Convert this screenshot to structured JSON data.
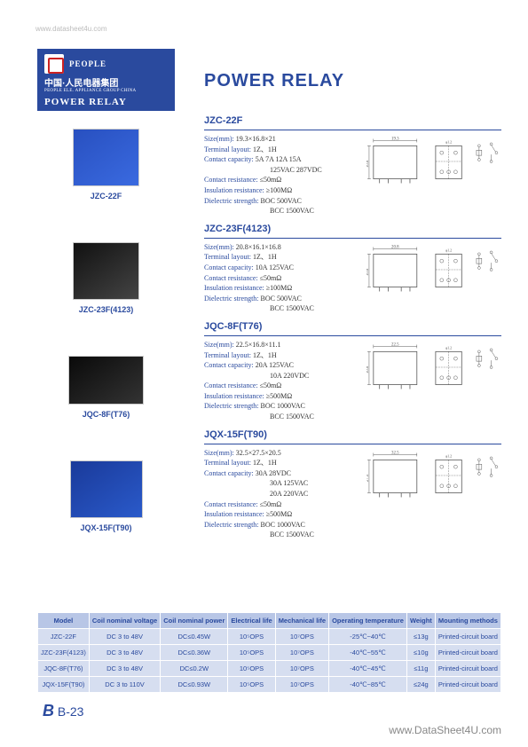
{
  "watermark_top": "www.datasheet4u.com",
  "watermark_bottom": "www.DataSheet4U.com",
  "header": {
    "brand": "PEOPLE",
    "cn": "中国·人民电器集团",
    "en_sub": "PEOPLE ELE. APPLIANCE GROUP CHINA",
    "product": "POWER RELAY"
  },
  "page_title": "POWER RELAY",
  "products": [
    {
      "id": "JZC-22F",
      "img_class": "blue"
    },
    {
      "id": "JZC-23F(4123)",
      "img_class": "black"
    },
    {
      "id": "JQC-8F(T76)",
      "img_class": "black2"
    },
    {
      "id": "JQX-15F(T90)",
      "img_class": "blue2"
    }
  ],
  "blocks": [
    {
      "title": "JZC-22F",
      "specs": [
        {
          "l": "Size(mm):",
          "v": "19.3×16.8×21"
        },
        {
          "l": "Terminal layout:",
          "v": "1Z、1H"
        },
        {
          "l": "Contact capacity:",
          "v": "5A 7A 12A 15A"
        },
        {
          "l": "",
          "v": "125VAC 287VDC",
          "indent": true
        },
        {
          "l": "Contact resistance:",
          "v": "≤50mΩ"
        },
        {
          "l": "Insulation resistance:",
          "v": "≥100MΩ"
        },
        {
          "l": "Dielectric strength:",
          "v": "BOC 500VAC"
        },
        {
          "l": "",
          "v": "BCC 1500VAC",
          "indent": true
        }
      ],
      "dim_w": "19.3",
      "dim_h": "16.8"
    },
    {
      "title": "JZC-23F(4123)",
      "specs": [
        {
          "l": "Size(mm):",
          "v": "20.8×16.1×16.8"
        },
        {
          "l": "Terminal layout:",
          "v": "1Z、1H"
        },
        {
          "l": "Contact capacity:",
          "v": "10A 125VAC"
        },
        {
          "l": "Contact resistance:",
          "v": "≤50mΩ"
        },
        {
          "l": "Insulation resistance:",
          "v": "≥100MΩ"
        },
        {
          "l": "Dielectric strength:",
          "v": "BOC 500VAC"
        },
        {
          "l": "",
          "v": "BCC 1500VAC",
          "indent": true
        }
      ],
      "dim_w": "20.8",
      "dim_h": "16.8"
    },
    {
      "title": "JQC-8F(T76)",
      "specs": [
        {
          "l": "Size(mm):",
          "v": "22.5×16.8×11.1"
        },
        {
          "l": "Terminal layout:",
          "v": "1Z、1H"
        },
        {
          "l": "Contact capacity:",
          "v": "20A 125VAC"
        },
        {
          "l": "",
          "v": "10A 220VDC",
          "indent": true
        },
        {
          "l": "Contact resistance:",
          "v": "≤50mΩ"
        },
        {
          "l": "Insulation resistance:",
          "v": "≥500MΩ"
        },
        {
          "l": "Dielectric strength:",
          "v": "BOC 1000VAC"
        },
        {
          "l": "",
          "v": "BCC 1500VAC",
          "indent": true
        }
      ],
      "dim_w": "22.5",
      "dim_h": "16.8"
    },
    {
      "title": "JQX-15F(T90)",
      "specs": [
        {
          "l": "Size(mm):",
          "v": "32.5×27.5×20.5"
        },
        {
          "l": "Terminal layout:",
          "v": "1Z、1H"
        },
        {
          "l": "Contact capacity:",
          "v": "30A 28VDC"
        },
        {
          "l": "",
          "v": "30A 125VAC",
          "indent": true
        },
        {
          "l": "",
          "v": "20A 220VAC",
          "indent": true
        },
        {
          "l": "Contact resistance:",
          "v": "≤50mΩ"
        },
        {
          "l": "Insulation resistance:",
          "v": "≥500MΩ"
        },
        {
          "l": "Dielectric strength:",
          "v": "BOC 1000VAC"
        },
        {
          "l": "",
          "v": "BCC 1500VAC",
          "indent": true
        }
      ],
      "dim_w": "32.5",
      "dim_h": "27.5"
    }
  ],
  "table": {
    "columns": [
      "Model",
      "Coil nominal voltage",
      "Coil nominal power",
      "Electrical life",
      "Mechanical life",
      "Operating temperature",
      "Weight",
      "Mounting methods"
    ],
    "rows": [
      [
        "JZC-22F",
        "DC 3 to 48V",
        "DC≤0.45W",
        "10⁵OPS",
        "10⁷OPS",
        "-25℃~40℃",
        "≤13g",
        "Printed-circuit board"
      ],
      [
        "JZC-23F(4123)",
        "DC 3 to 48V",
        "DC≤0.36W",
        "10⁵OPS",
        "10⁷OPS",
        "-40℃~55℃",
        "≤10g",
        "Printed-circuit board"
      ],
      [
        "JQC-8F(T76)",
        "DC 3 to 48V",
        "DC≤0.2W",
        "10⁵OPS",
        "10⁷OPS",
        "-40℃~45℃",
        "≤11g",
        "Printed-circuit board"
      ],
      [
        "JQX-15F(T90)",
        "DC 3 to 110V",
        "DC≤0.93W",
        "10⁵OPS",
        "10⁷OPS",
        "-40℃~85℃",
        "≤24g",
        "Printed-circuit board"
      ]
    ]
  },
  "page_num": {
    "prefix": "B",
    "num": "B-23"
  },
  "colors": {
    "brand": "#2a4a9e",
    "th_bg": "#b8c6e6",
    "td_bg": "#d6def0"
  }
}
